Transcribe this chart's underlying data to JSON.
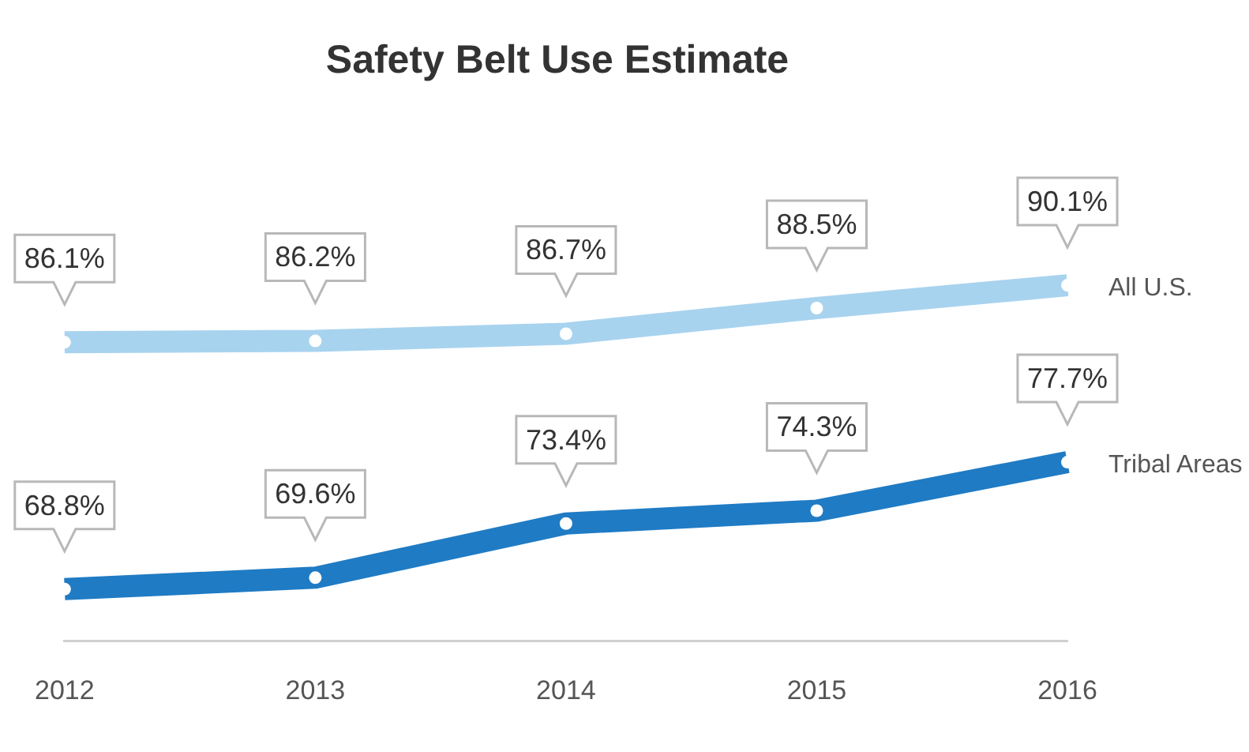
{
  "chart_data": {
    "type": "line",
    "title": "Safety Belt Use Estimate",
    "categories": [
      "2012",
      "2013",
      "2014",
      "2015",
      "2016"
    ],
    "series": [
      {
        "name": "All U.S.",
        "color": "#a8d3ef",
        "values": [
          86.1,
          86.2,
          86.7,
          88.5,
          90.1
        ],
        "value_labels": [
          "86.1%",
          "86.2%",
          "86.7%",
          "88.5%",
          "90.1%"
        ]
      },
      {
        "name": "Tribal Areas",
        "color": "#1f7bc4",
        "values": [
          68.8,
          69.6,
          73.4,
          74.3,
          77.7
        ],
        "value_labels": [
          "68.8%",
          "69.6%",
          "73.4%",
          "74.3%",
          "77.7%"
        ]
      }
    ],
    "legend": false,
    "grid": false,
    "marker": "circle",
    "tick_labels": "x"
  }
}
